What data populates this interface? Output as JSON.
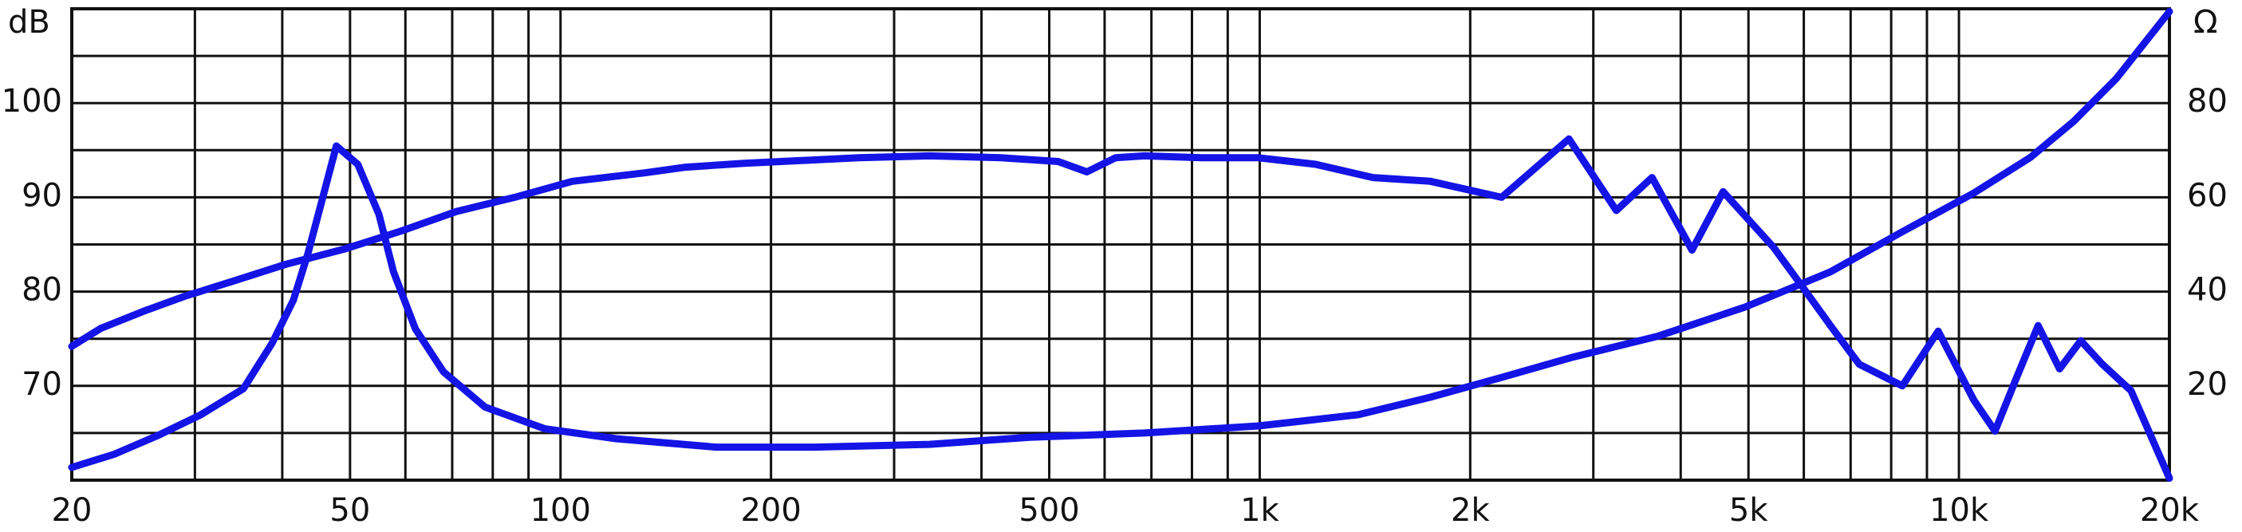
{
  "chart_data": {
    "type": "line",
    "y_label": "dB",
    "y2_label": "Ω",
    "xscale": "log",
    "grid": true,
    "xlim": [
      20,
      20000
    ],
    "xticks": [
      20,
      50,
      100,
      200,
      500,
      {
        "value": 1000,
        "label": "1k"
      },
      {
        "value": 2000,
        "label": "2k"
      },
      {
        "value": 5000,
        "label": "5k"
      },
      {
        "value": 10000,
        "label": "10k"
      },
      {
        "value": 20000,
        "label": "20k"
      }
    ],
    "minor_xticks": [
      30,
      40,
      60,
      70,
      80,
      90,
      300,
      400,
      600,
      700,
      800,
      900,
      3000,
      4000,
      6000,
      7000,
      8000,
      9000
    ],
    "ylim": [
      60,
      110
    ],
    "yticks": [
      70,
      80,
      90,
      100
    ],
    "minor_yticks": [
      65,
      75,
      85,
      95,
      105
    ],
    "y2lim": [
      0,
      100
    ],
    "y2ticks": [
      20,
      40,
      60,
      80
    ],
    "series": [
      {
        "color": "#1414e6",
        "axis": "y",
        "x": [
          20,
          22,
          25.3,
          29,
          34,
          40.5,
          49,
          59,
          71,
          86,
          104,
          132,
          151,
          183,
          221,
          267,
          337,
          427,
          515,
          566,
          622,
          684,
          826,
          996,
          1202,
          1452,
          1754,
          2218,
          2768,
          3236,
          3640,
          4152,
          4600,
          5430,
          5960,
          6550,
          7200,
          8300,
          9340,
          10500,
          11260,
          12080,
          12980,
          13930,
          14940,
          16030,
          17620,
          20000
        ],
        "values": [
          74.2,
          76.1,
          77.9,
          79.5,
          81.1,
          82.9,
          84.5,
          86.4,
          88.5,
          90.0,
          91.7,
          92.6,
          93.2,
          93.6,
          93.9,
          94.2,
          94.4,
          94.2,
          93.8,
          92.7,
          94.2,
          94.4,
          94.2,
          94.2,
          93.5,
          92.1,
          91.7,
          90.0,
          96.2,
          88.6,
          92.1,
          84.4,
          90.6,
          84.7,
          80.6,
          76.4,
          72.3,
          70.0,
          75.8,
          68.5,
          65.2,
          70.8,
          76.4,
          71.8,
          74.8,
          72.3,
          69.5,
          60.2
        ]
      },
      {
        "color": "#1414e6",
        "axis": "y2",
        "x": [
          20,
          23,
          26.5,
          30.6,
          35.2,
          38.7,
          41.5,
          43.5,
          45.6,
          47.8,
          51.3,
          55,
          57.7,
          62,
          68,
          78,
          95,
          120,
          167,
          231,
          337,
          469,
          684,
          996,
          1384,
          1754,
          2218,
          2806,
          3720,
          4940,
          6550,
          8300,
          10500,
          12660,
          14590,
          16790,
          20000
        ],
        "values": [
          2.7,
          5.5,
          9.4,
          13.9,
          19.4,
          29.1,
          38.2,
          47.9,
          59.4,
          70.9,
          67.0,
          56.4,
          44.2,
          32.1,
          23.0,
          15.5,
          10.9,
          8.8,
          7.0,
          7.0,
          7.6,
          9.1,
          10.0,
          11.5,
          13.9,
          17.6,
          21.8,
          26.1,
          30.6,
          36.7,
          44.2,
          52.7,
          60.9,
          68.5,
          76.1,
          85.2,
          99.4
        ]
      }
    ]
  }
}
